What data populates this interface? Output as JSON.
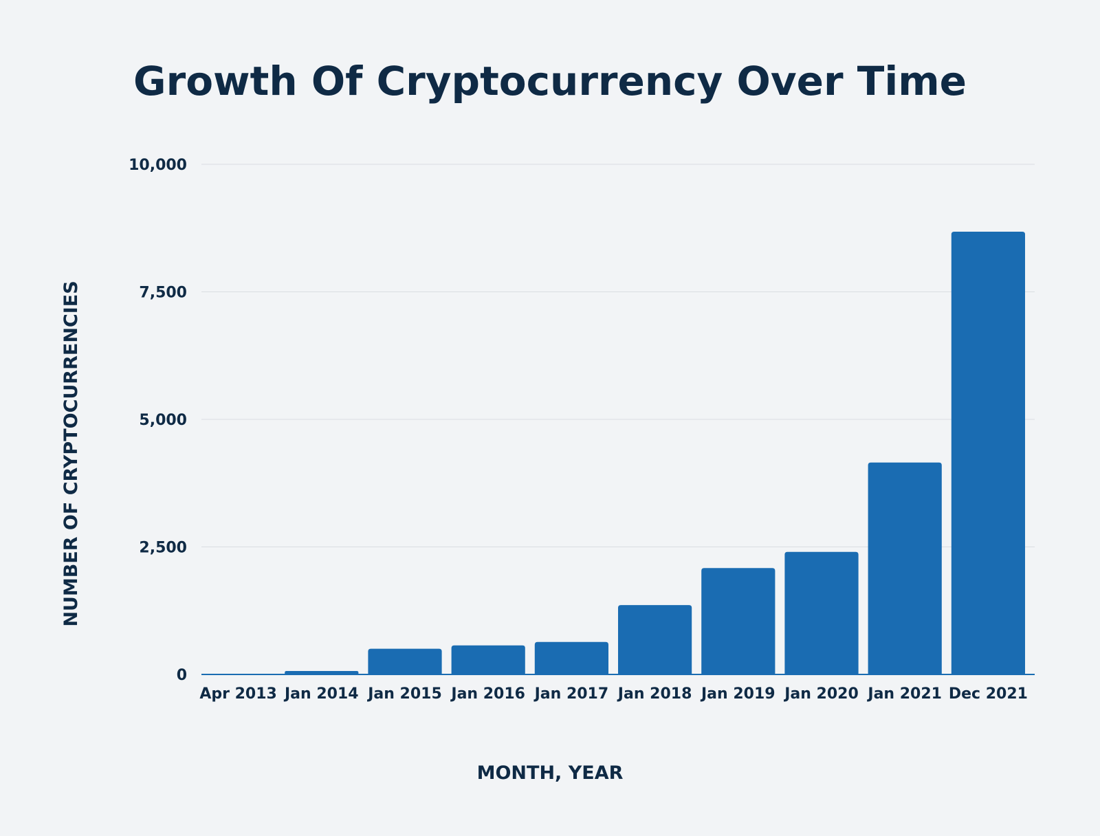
{
  "chart_data": {
    "type": "bar",
    "title": "Growth Of Cryptocurrency Over Time",
    "xlabel": "MONTH, YEAR",
    "ylabel": "NUMBER OF CRYPTOCURRENCIES",
    "categories": [
      "Apr 2013",
      "Jan 2014",
      "Jan 2015",
      "Jan 2016",
      "Jan 2017",
      "Jan 2018",
      "Jan 2019",
      "Jan 2020",
      "Jan 2021",
      "Dec 2021"
    ],
    "values": [
      7,
      67,
      503,
      570,
      636,
      1359,
      2086,
      2403,
      4154,
      8679
    ],
    "ylim": [
      0,
      10000
    ],
    "yticks": [
      0,
      2500,
      5000,
      7500,
      10000
    ],
    "ytick_labels": [
      "0",
      "2,500",
      "5,000",
      "7,500",
      "10,000"
    ],
    "grid": true,
    "bar_color": "#1a6cb2",
    "background": "#f2f4f6",
    "text_color": "#0f2a45"
  }
}
